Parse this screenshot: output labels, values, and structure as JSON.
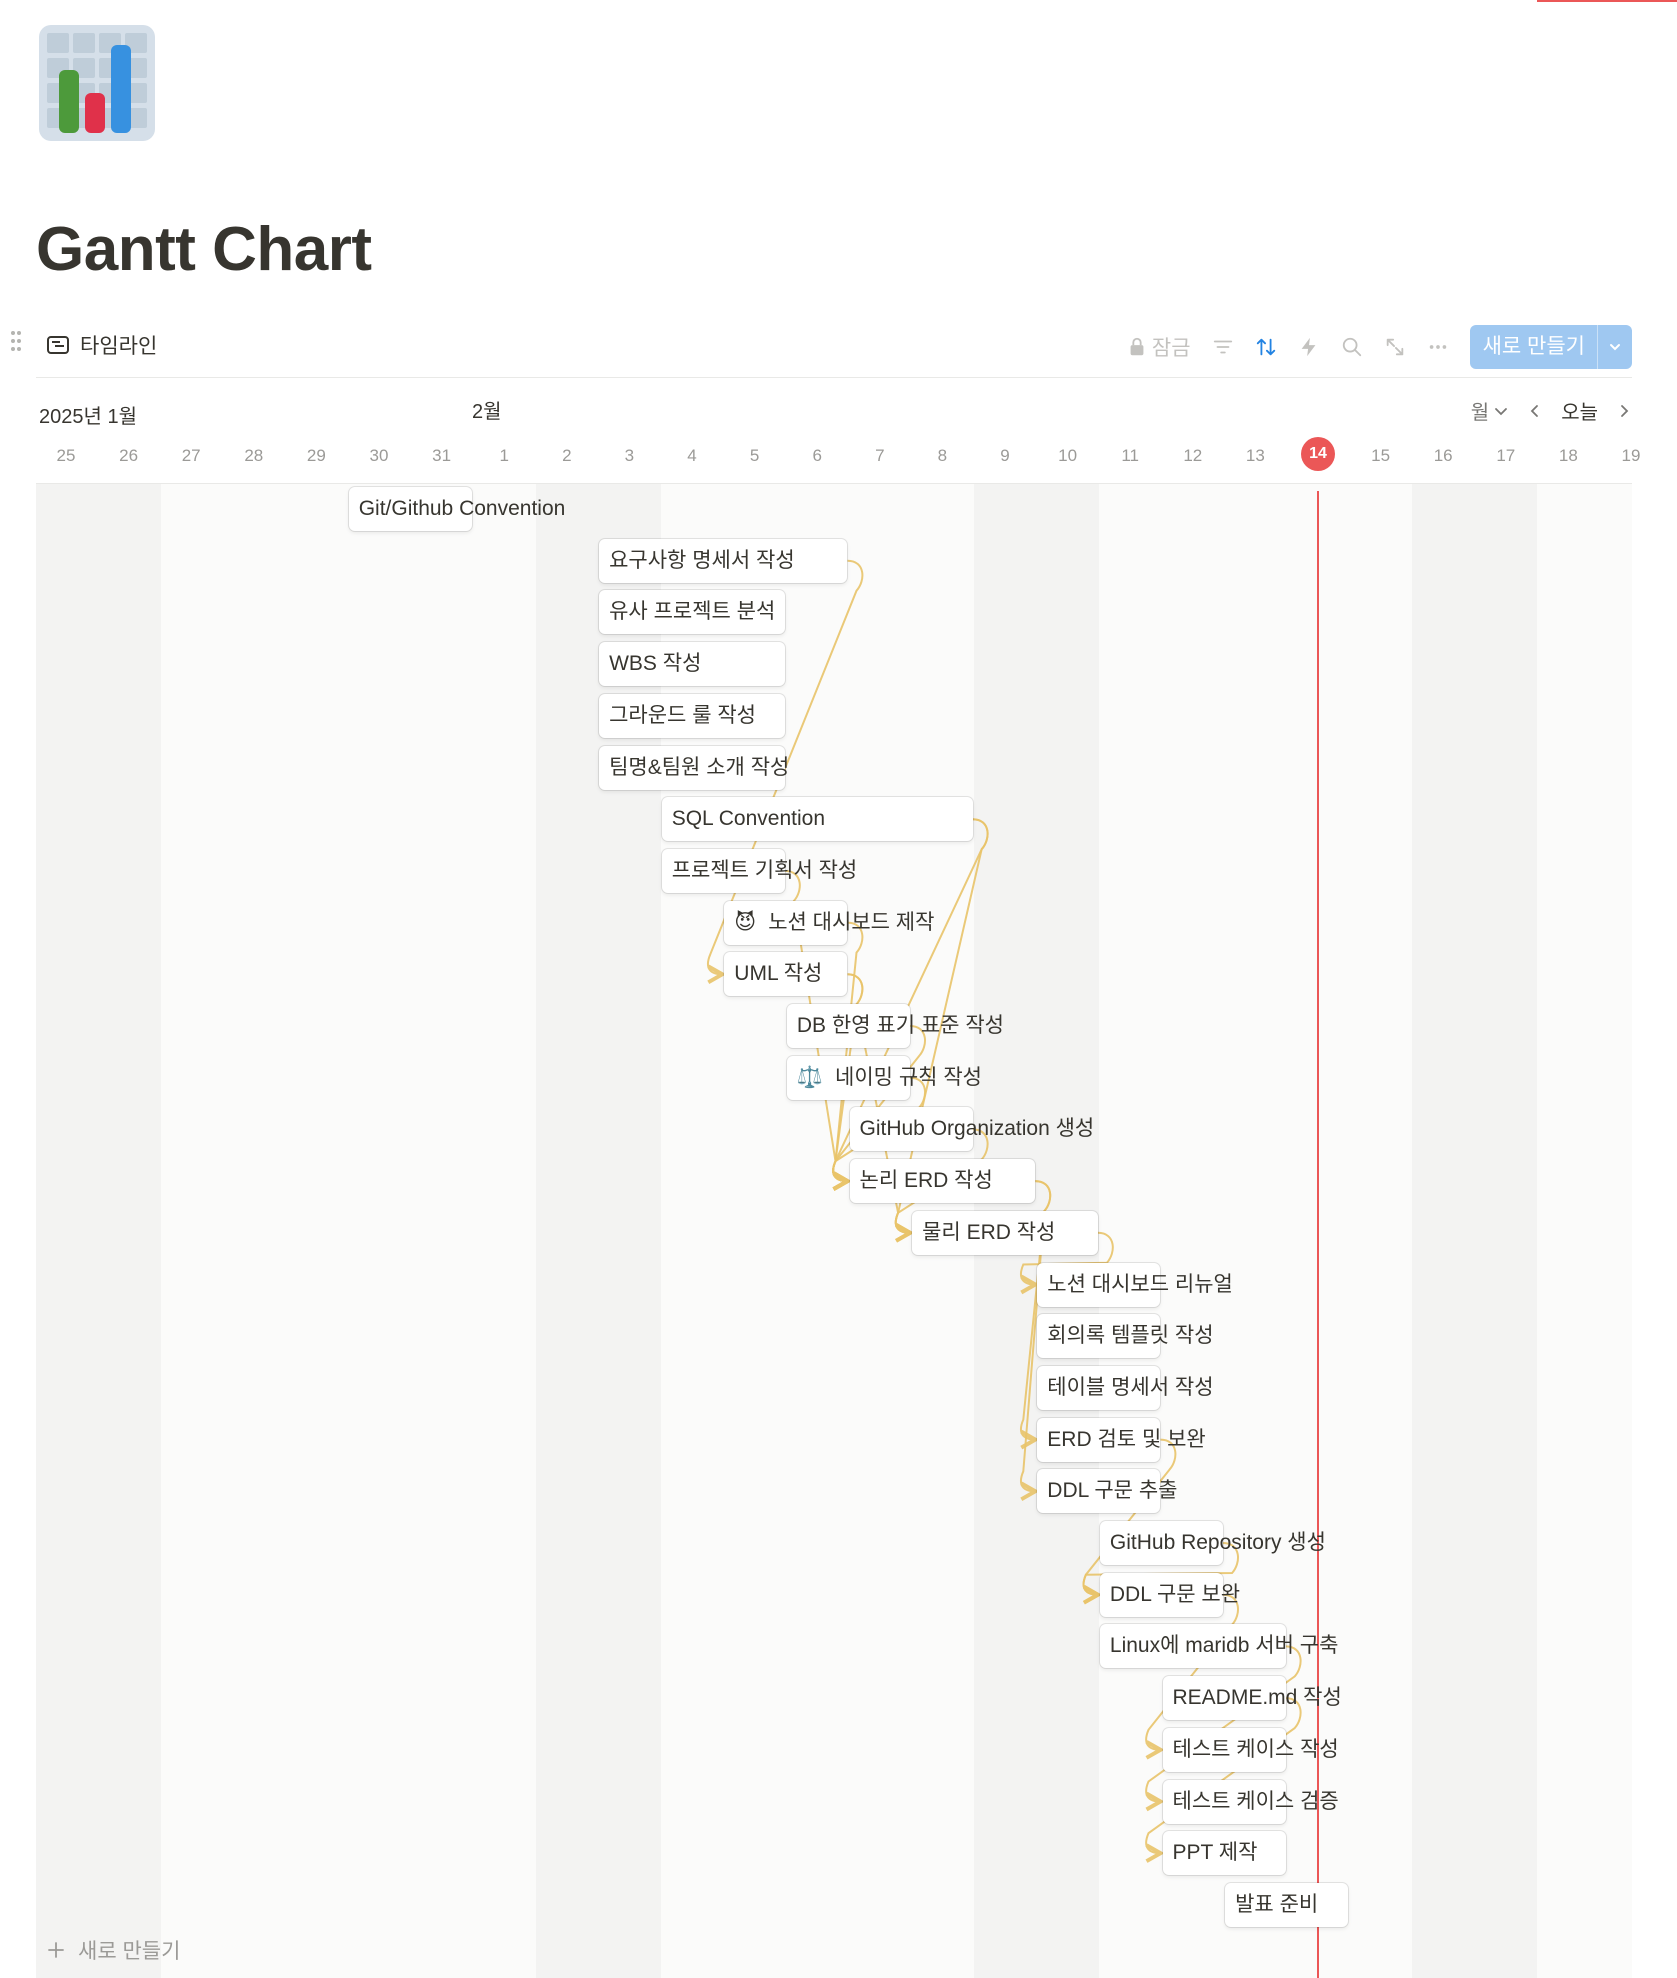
{
  "page": {
    "title": "Gantt Chart"
  },
  "view": {
    "tab_label": "타임라인"
  },
  "toolbar": {
    "lock_label": "잠금",
    "new_button_label": "새로 만들기"
  },
  "timeline": {
    "month_jan": "2025년 1월",
    "month_feb": "2월",
    "scale_label": "월",
    "today_label": "오늘",
    "today_day": "14",
    "days": [
      "25",
      "26",
      "27",
      "28",
      "29",
      "30",
      "31",
      "1",
      "2",
      "3",
      "4",
      "5",
      "6",
      "7",
      "8",
      "9",
      "10",
      "11",
      "12",
      "13",
      "14",
      "15",
      "16",
      "17",
      "18",
      "19"
    ]
  },
  "tasks": [
    {
      "label": "Git/Github Convention",
      "start": 5,
      "end": 7
    },
    {
      "label": "요구사항 명세서 작성",
      "start": 9,
      "end": 13
    },
    {
      "label": "유사 프로젝트 분석",
      "start": 9,
      "end": 12
    },
    {
      "label": "WBS 작성",
      "start": 9,
      "end": 12
    },
    {
      "label": "그라운드 룰 작성",
      "start": 9,
      "end": 12
    },
    {
      "label": "팀명&팀원 소개 작성",
      "start": 9,
      "end": 12
    },
    {
      "label": "SQL Convention",
      "start": 10,
      "end": 15
    },
    {
      "label": "프로젝트 기획서 작성",
      "start": 10,
      "end": 12
    },
    {
      "label": "노션 대시보드 제작",
      "emoji": "😈",
      "start": 11,
      "end": 13
    },
    {
      "label": "UML 작성",
      "start": 11,
      "end": 13
    },
    {
      "label": "DB 한영 표기 표준 작성",
      "start": 12,
      "end": 14
    },
    {
      "label": "네이밍 규칙 작성",
      "emoji": "⚖️",
      "start": 12,
      "end": 14
    },
    {
      "label": "GitHub Organization 생성",
      "start": 13,
      "end": 15
    },
    {
      "label": "논리 ERD 작성",
      "start": 13,
      "end": 16
    },
    {
      "label": "물리 ERD 작성",
      "start": 14,
      "end": 17
    },
    {
      "label": "노션 대시보드 리뉴얼",
      "start": 16,
      "end": 18
    },
    {
      "label": "회의록 템플릿 작성",
      "start": 16,
      "end": 18
    },
    {
      "label": "테이블 명세서 작성",
      "start": 16,
      "end": 18
    },
    {
      "label": "ERD 검토 및 보완",
      "start": 16,
      "end": 18
    },
    {
      "label": "DDL 구문 추출",
      "start": 16,
      "end": 18
    },
    {
      "label": "GitHub Repository 생성",
      "start": 17,
      "end": 19
    },
    {
      "label": "DDL 구문 보완",
      "start": 17,
      "end": 19
    },
    {
      "label": "Linux에 maridb 서버 구축",
      "start": 17,
      "end": 20
    },
    {
      "label": "README.md 작성",
      "start": 18,
      "end": 20
    },
    {
      "label": "테스트 케이스 작성",
      "start": 18,
      "end": 20
    },
    {
      "label": "테스트 케이스 검증",
      "start": 18,
      "end": 20
    },
    {
      "label": "PPT 제작",
      "start": 18,
      "end": 20
    },
    {
      "label": "발표 준비",
      "start": 19,
      "end": 21
    }
  ],
  "dependencies": [
    [
      1,
      9
    ],
    [
      6,
      13
    ],
    [
      6,
      14
    ],
    [
      7,
      13
    ],
    [
      8,
      13
    ],
    [
      9,
      13
    ],
    [
      9,
      14
    ],
    [
      10,
      13
    ],
    [
      11,
      13
    ],
    [
      12,
      14
    ],
    [
      13,
      18
    ],
    [
      14,
      15
    ],
    [
      13,
      19
    ],
    [
      18,
      21
    ],
    [
      20,
      21
    ],
    [
      21,
      24
    ],
    [
      22,
      25
    ],
    [
      23,
      26
    ]
  ],
  "footer": {
    "new_row_label": "새로 만들기"
  },
  "colors": {
    "accent": "#2383e2",
    "today": "#eb5757",
    "dependency": "#e9c46a",
    "dependency_strong": "#d4a017"
  }
}
